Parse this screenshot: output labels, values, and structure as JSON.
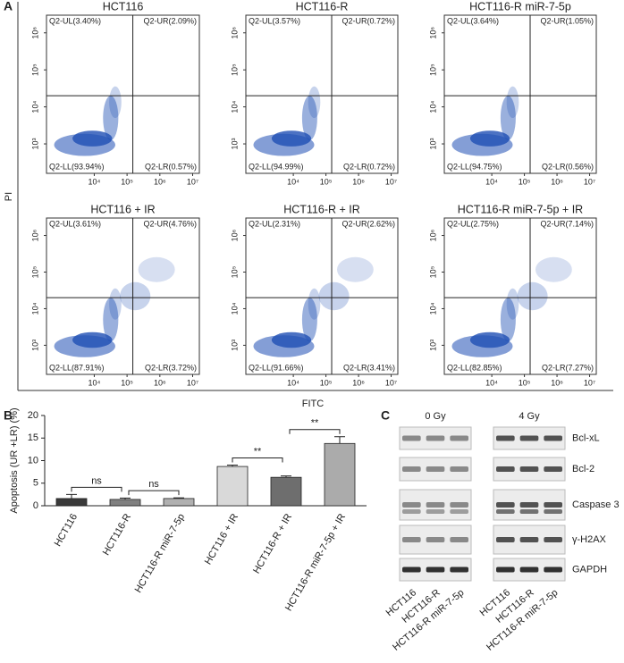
{
  "panel_labels": [
    "A",
    "B",
    "C"
  ],
  "chart_data": [
    {
      "type": "scatter",
      "x_label": "FITC",
      "y_label": "PI",
      "log_scale": true,
      "xlim": [
        350,
        16000000
      ],
      "ylim": [
        160,
        3000000
      ],
      "xticks": [
        {
          "value": 10000,
          "label": "10⁴"
        },
        {
          "value": 100000,
          "label": "10⁵"
        },
        {
          "value": 1000000,
          "label": "10⁶"
        },
        {
          "value": 10000000,
          "label": "10⁷"
        }
      ],
      "yticks": [
        {
          "value": 1000,
          "label": "10³"
        },
        {
          "value": 10000,
          "label": "10⁴"
        },
        {
          "value": 100000,
          "label": "10⁵"
        },
        {
          "value": 1000000,
          "label": "10⁶"
        }
      ],
      "quadrant_gate": {
        "x": 150000,
        "y": 20000
      },
      "color": "#1f4fb4",
      "plots": [
        {
          "title": "HCT116",
          "quadrants": [
            "Q2-UL(3.40%)",
            "Q2-UR(2.09%)",
            "Q2-LL(93.94%)",
            "Q2-LR(0.57%)"
          ]
        },
        {
          "title": "HCT116-R",
          "quadrants": [
            "Q2-UL(3.57%)",
            "Q2-UR(0.72%)",
            "Q2-LL(94.99%)",
            "Q2-LR(0.72%)"
          ]
        },
        {
          "title": "HCT116-R miR-7-5p",
          "quadrants": [
            "Q2-UL(3.64%)",
            "Q2-UR(1.05%)",
            "Q2-LL(94.75%)",
            "Q2-LR(0.56%)"
          ]
        },
        {
          "title": "HCT116 + IR",
          "quadrants": [
            "Q2-UL(3.61%)",
            "Q2-UR(4.76%)",
            "Q2-LL(87.91%)",
            "Q2-LR(3.72%)"
          ]
        },
        {
          "title": "HCT116-R + IR",
          "quadrants": [
            "Q2-UL(2.31%)",
            "Q2-UR(2.62%)",
            "Q2-LL(91.66%)",
            "Q2-LR(3.41%)"
          ]
        },
        {
          "title": "HCT116-R miR-7-5p + IR",
          "quadrants": [
            "Q2-UL(2.75%)",
            "Q2-UR(7.14%)",
            "Q2-LL(82.85%)",
            "Q2-LR(7.27%)"
          ]
        }
      ]
    },
    {
      "type": "bar",
      "y_label": "Apoptosis (UR +LR) (%)",
      "categories": [
        "HCT116",
        "HCT116-R",
        "HCT116-R miR-7-5p",
        "HCT116 + IR",
        "HCT116-R + IR",
        "HCT116-R miR-7-5p + IR"
      ],
      "values": [
        1.6,
        1.4,
        1.6,
        8.7,
        6.3,
        13.8
      ],
      "errors": [
        0.9,
        0.3,
        0.15,
        0.3,
        0.3,
        1.5
      ],
      "colors": [
        "#3a3a3a",
        "#808080",
        "#b0b0b0",
        "#d9d9d9",
        "#6e6e6e",
        "#ababab"
      ],
      "ylim": [
        0,
        20
      ],
      "yticks": [
        0,
        5,
        10,
        15,
        20
      ],
      "significance": [
        {
          "pair": [
            0,
            1
          ],
          "label": "ns"
        },
        {
          "pair": [
            1,
            2
          ],
          "label": "ns"
        },
        {
          "pair": [
            3,
            4
          ],
          "label": "**"
        },
        {
          "pair": [
            4,
            5
          ],
          "label": "**"
        }
      ]
    }
  ],
  "western_blot": {
    "groups": [
      "0 Gy",
      "4 Gy"
    ],
    "proteins": [
      "Bcl-xL",
      "Bcl-2",
      "Caspase 3",
      "γ-H2AX",
      "GAPDH"
    ],
    "lanes": [
      "HCT116",
      "HCT116-R",
      "HCT116-R miR-7-5p"
    ]
  }
}
